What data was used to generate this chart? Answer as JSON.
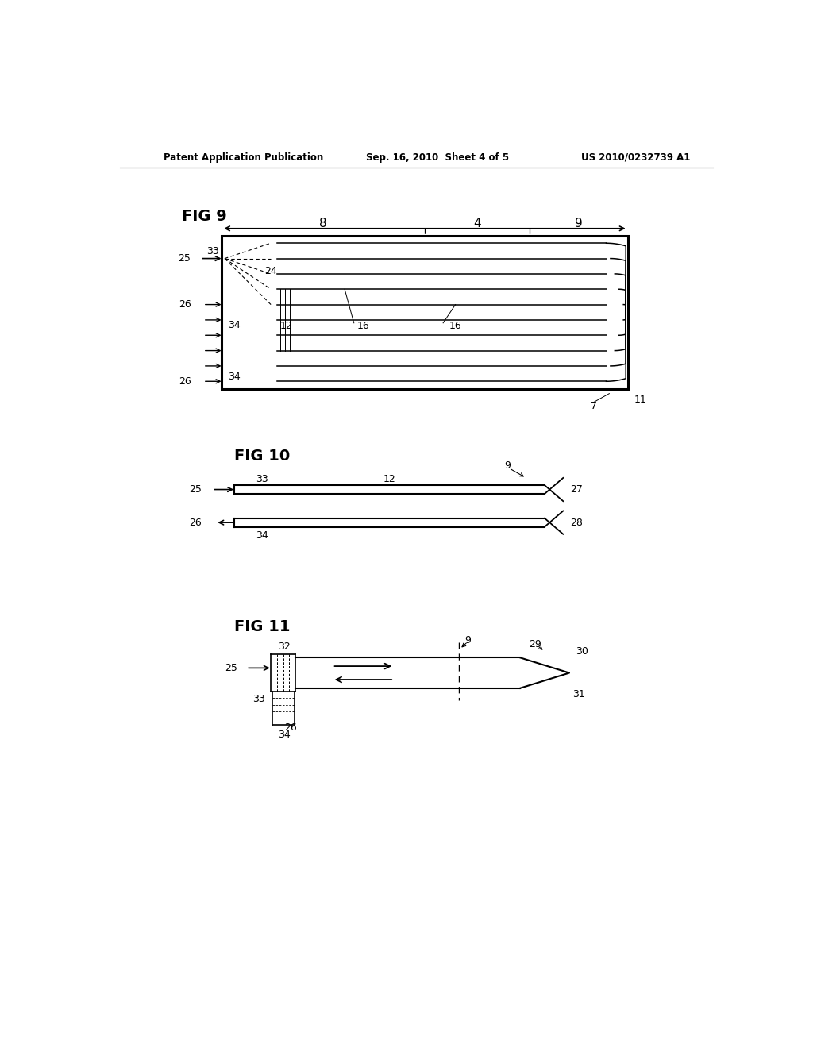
{
  "bg_color": "#ffffff",
  "text_color": "#000000",
  "header_left": "Patent Application Publication",
  "header_mid": "Sep. 16, 2010  Sheet 4 of 5",
  "header_right": "US 2010/0232739 A1",
  "fig9_label": "FIG 9",
  "fig10_label": "FIG 10",
  "fig11_label": "FIG 11"
}
